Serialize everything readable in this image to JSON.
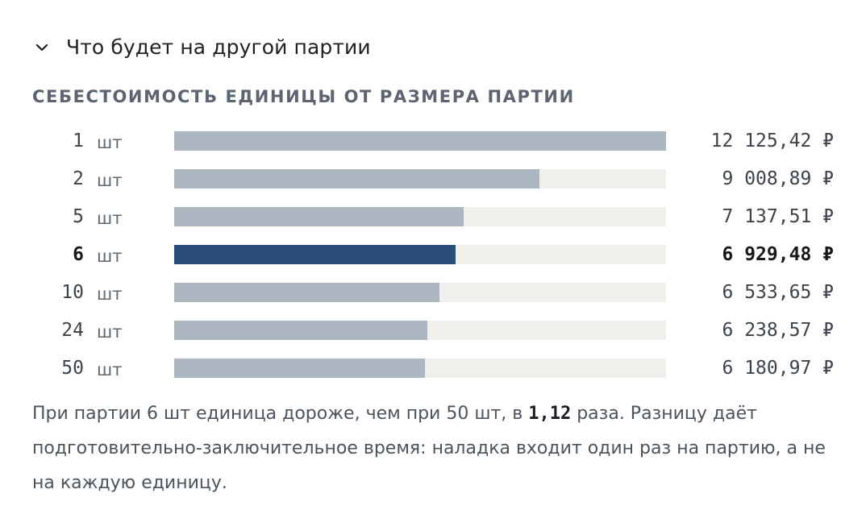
{
  "section": {
    "title": "Что будет на другой партии",
    "toggle_icon": "chevron-down-icon"
  },
  "chart_data": {
    "type": "bar",
    "orientation": "horizontal",
    "title": "СЕБЕСТОИМОСТЬ ЕДИНИЦЫ ОТ РАЗМЕРА ПАРТИИ",
    "unit_label": "шт",
    "value_suffix": "₽",
    "categories": [
      "1",
      "2",
      "5",
      "6",
      "10",
      "24",
      "50"
    ],
    "values": [
      12125.42,
      9008.89,
      7137.51,
      6929.48,
      6533.65,
      6238.57,
      6180.97
    ],
    "value_labels": [
      "12 125,42 ₽",
      "9 008,89 ₽",
      "7 137,51 ₽",
      "6 929,48 ₽",
      "6 533,65 ₽",
      "6 238,57 ₽",
      "6 180,97 ₽"
    ],
    "highlight_category": "6",
    "xlim": [
      0,
      12125.42
    ],
    "colors": {
      "bar": "#abb6c1",
      "bar_highlight": "#2b4e78",
      "track": "#f0efec"
    },
    "grid": false,
    "legend": "none"
  },
  "note": {
    "text_before": "При партии 6 шт единица дороже, чем при 50 шт, в ",
    "ratio": "1,12",
    "text_after": " раза. Разницу даёт подготовительно-заключительное время: наладка входит один раз на партию, а не на каждую единицу."
  }
}
